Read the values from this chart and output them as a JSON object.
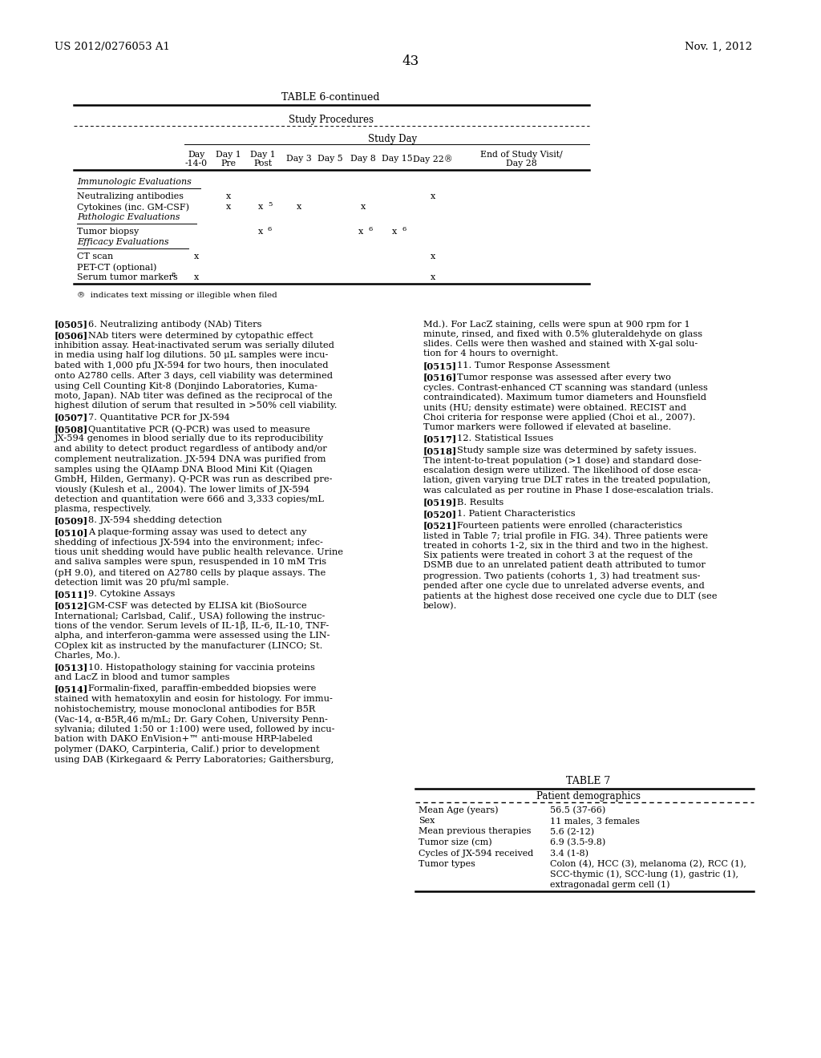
{
  "page_number": "43",
  "patent_number": "US 2012/0276053 A1",
  "patent_date": "Nov. 1, 2012",
  "background_color": "#ffffff",
  "table_title": "TABLE 6-continued",
  "table_subtitle": "Study Procedures",
  "table_subsubtitle": "Study Day",
  "footnote": "®  indicates text missing or illegible when filed",
  "table7_title": "TABLE 7",
  "table7_subtitle": "Patient demographics",
  "table7_rows": [
    [
      "Mean Age (years)",
      "56.5 (37-66)"
    ],
    [
      "Sex",
      "11 males, 3 females"
    ],
    [
      "Mean previous therapies",
      "5.6 (2-12)"
    ],
    [
      "Tumor size (cm)",
      "6.9 (3.5-9.8)"
    ],
    [
      "Cycles of JX-594 received",
      "3.4 (1-8)"
    ],
    [
      "Tumor types",
      "Colon (4), HCC (3), melanoma (2), RCC (1),\nSCC-thymic (1), SCC-lung (1), gastric (1),\nextragonadal germ cell (1)"
    ]
  ]
}
